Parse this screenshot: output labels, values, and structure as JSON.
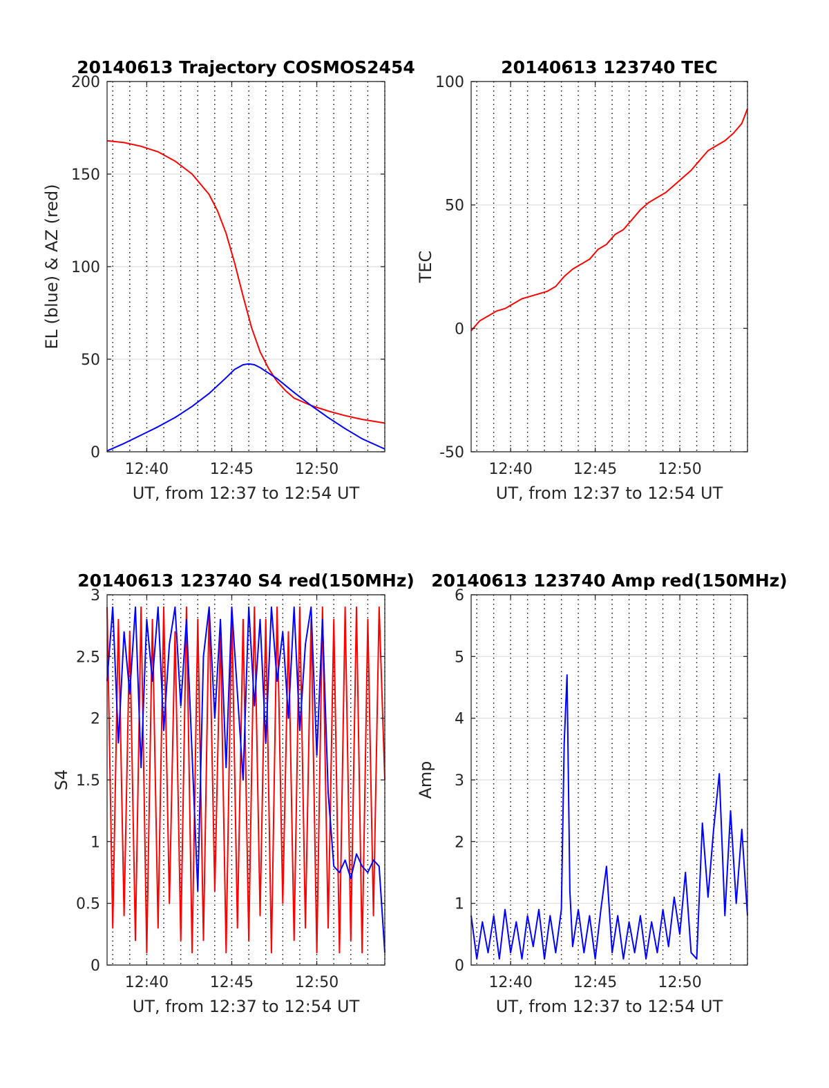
{
  "figure": {
    "background": "#ffffff",
    "colors": {
      "red": "#ff0000",
      "blue": "#0000ff",
      "axis": "#262626",
      "grid": "#dcdcdc",
      "dotted": "#000000"
    }
  },
  "chart_data": [
    {
      "id": "trajectory",
      "type": "line",
      "title": "20140613 Trajectory COSMOS2454",
      "xlabel": "UT, from 12:37 to 12:54 UT",
      "ylabel": "EL (blue) & AZ (red)",
      "xlim": [
        "12:37:40",
        "12:54:00"
      ],
      "ylim": [
        0,
        200
      ],
      "yticks": [
        0,
        50,
        100,
        150,
        200
      ],
      "xticks": [
        "12:40",
        "12:45",
        "12:50"
      ],
      "grid": "horizontal solid at y ticks; vertical dotted every minute",
      "series": [
        {
          "color": "#ff0000",
          "x": [
            "12:37:40",
            "12:38:40",
            "12:39:40",
            "12:40:40",
            "12:41:40",
            "12:42:40",
            "12:43:40",
            "12:44:10",
            "12:44:40",
            "12:45:10",
            "12:45:40",
            "12:46:10",
            "12:46:40",
            "12:47:10",
            "12:47:40",
            "12:48:10",
            "12:48:40",
            "12:49:40",
            "12:50:40",
            "12:51:40",
            "12:52:40",
            "12:54:00"
          ],
          "values": [
            168,
            167,
            165,
            162,
            157,
            150,
            139,
            130,
            118,
            102,
            84,
            67,
            54,
            45,
            38,
            33,
            29,
            25,
            22,
            19.5,
            17.5,
            15.5
          ]
        },
        {
          "color": "#0000ff",
          "x": [
            "12:37:40",
            "12:38:40",
            "12:39:40",
            "12:40:40",
            "12:41:40",
            "12:42:40",
            "12:43:40",
            "12:44:40",
            "12:45:10",
            "12:45:40",
            "12:46:00",
            "12:46:20",
            "12:46:40",
            "12:47:40",
            "12:48:40",
            "12:49:40",
            "12:50:40",
            "12:51:40",
            "12:52:40",
            "12:54:00"
          ],
          "values": [
            0.5,
            4.5,
            9,
            13.5,
            18.5,
            24.5,
            31.5,
            40,
            44.5,
            47,
            47.5,
            47,
            45.5,
            39.5,
            32,
            25,
            18.5,
            12.5,
            7,
            1.5
          ]
        }
      ]
    },
    {
      "id": "tec",
      "type": "line",
      "title": "20140613 123740 TEC",
      "xlabel": "UT, from 12:37 to 12:54 UT",
      "ylabel": "TEC",
      "xlim": [
        "12:37:40",
        "12:54:00"
      ],
      "ylim": [
        -50,
        100
      ],
      "yticks": [
        -50,
        0,
        50,
        100
      ],
      "xticks": [
        "12:40",
        "12:45",
        "12:50"
      ],
      "grid": "horizontal solid at y ticks; vertical dotted every minute",
      "series": [
        {
          "color": "#ff0000",
          "x": [
            "12:37:40",
            "12:38:10",
            "12:38:40",
            "12:39:10",
            "12:39:40",
            "12:40:10",
            "12:40:40",
            "12:41:10",
            "12:41:40",
            "12:42:10",
            "12:42:40",
            "12:43:10",
            "12:43:40",
            "12:44:10",
            "12:44:40",
            "12:45:10",
            "12:45:40",
            "12:46:10",
            "12:46:40",
            "12:47:10",
            "12:47:40",
            "12:48:10",
            "12:48:40",
            "12:49:10",
            "12:49:40",
            "12:50:10",
            "12:50:40",
            "12:51:10",
            "12:51:40",
            "12:52:10",
            "12:52:40",
            "12:53:10",
            "12:53:40",
            "12:54:00"
          ],
          "values": [
            -1,
            3,
            5,
            7,
            8,
            10,
            12,
            13,
            14,
            15,
            17,
            21,
            24,
            26,
            28,
            32,
            34,
            38,
            40,
            44,
            48,
            51,
            53,
            55,
            58,
            61,
            64,
            68,
            72,
            74,
            76,
            79,
            83,
            89
          ]
        }
      ]
    },
    {
      "id": "s4",
      "type": "line",
      "title": "20140613 123740 S4 red(150MHz)",
      "xlabel": "UT, from 12:37 to 12:54 UT",
      "ylabel": "S4",
      "xlim": [
        "12:37:40",
        "12:54:00"
      ],
      "ylim": [
        0,
        3
      ],
      "yticks": [
        0,
        0.5,
        1,
        1.5,
        2,
        2.5,
        3
      ],
      "ytick_labels": [
        "0",
        "0.5",
        "1",
        "1.5",
        "2",
        "2.5",
        "3"
      ],
      "xticks": [
        "12:40",
        "12:45",
        "12:50"
      ],
      "grid": "horizontal solid at y ticks; vertical dotted every minute",
      "series": [
        {
          "color": "#ff0000",
          "x": [
            "12:37:40",
            "12:38:00",
            "12:38:20",
            "12:38:40",
            "12:39:00",
            "12:39:20",
            "12:39:40",
            "12:40:00",
            "12:40:20",
            "12:40:40",
            "12:41:00",
            "12:41:20",
            "12:41:40",
            "12:42:00",
            "12:42:20",
            "12:42:40",
            "12:43:00",
            "12:43:20",
            "12:43:40",
            "12:44:00",
            "12:44:20",
            "12:44:40",
            "12:45:00",
            "12:45:20",
            "12:45:40",
            "12:46:00",
            "12:46:20",
            "12:46:40",
            "12:47:00",
            "12:47:20",
            "12:47:40",
            "12:48:00",
            "12:48:20",
            "12:48:40",
            "12:49:00",
            "12:49:20",
            "12:49:40",
            "12:50:00",
            "12:50:20",
            "12:50:40",
            "12:51:00",
            "12:51:20",
            "12:51:40",
            "12:52:00",
            "12:52:20",
            "12:52:40",
            "12:53:00",
            "12:53:20",
            "12:53:40",
            "12:54:00"
          ],
          "values": [
            2.9,
            0.3,
            2.8,
            0.4,
            2.7,
            0.2,
            2.9,
            0.1,
            2.8,
            0.3,
            2.9,
            0.5,
            2.7,
            0.2,
            2.9,
            0.1,
            2.8,
            0.2,
            2.9,
            0.6,
            2.7,
            0.1,
            2.9,
            0.3,
            2.8,
            0.2,
            2.9,
            0.4,
            2.8,
            0.1,
            2.9,
            0.5,
            2.7,
            0.2,
            2.9,
            0.3,
            2.8,
            0.1,
            2.9,
            0.3,
            2.8,
            0.1,
            2.9,
            0.2,
            2.9,
            0.1,
            2.8,
            0.4,
            2.9,
            1.5
          ]
        },
        {
          "color": "#0000ff",
          "x": [
            "12:37:40",
            "12:38:00",
            "12:38:20",
            "12:38:40",
            "12:39:00",
            "12:39:20",
            "12:39:40",
            "12:40:00",
            "12:40:20",
            "12:40:40",
            "12:41:00",
            "12:41:20",
            "12:41:40",
            "12:42:00",
            "12:42:20",
            "12:42:40",
            "12:43:00",
            "12:43:20",
            "12:43:40",
            "12:44:00",
            "12:44:20",
            "12:44:40",
            "12:45:00",
            "12:45:20",
            "12:45:40",
            "12:46:00",
            "12:46:20",
            "12:46:40",
            "12:47:00",
            "12:47:20",
            "12:47:40",
            "12:48:00",
            "12:48:20",
            "12:48:40",
            "12:49:00",
            "12:49:20",
            "12:49:40",
            "12:50:00",
            "12:50:20",
            "12:50:40",
            "12:51:00",
            "12:51:20",
            "12:51:40",
            "12:52:00",
            "12:52:20",
            "12:52:40",
            "12:53:00",
            "12:53:20",
            "12:53:40",
            "12:54:00"
          ],
          "values": [
            2.3,
            2.9,
            1.8,
            2.7,
            2.2,
            2.9,
            1.6,
            2.8,
            2.3,
            2.9,
            1.9,
            2.6,
            2.9,
            2.1,
            2.8,
            1.7,
            0.6,
            2.5,
            2.9,
            2.0,
            2.8,
            1.6,
            2.9,
            2.2,
            1.5,
            2.9,
            2.1,
            2.8,
            1.8,
            2.9,
            2.3,
            2.7,
            2.0,
            2.9,
            1.9,
            2.6,
            2.9,
            1.7,
            2.8,
            1.4,
            0.8,
            0.75,
            0.85,
            0.7,
            0.9,
            0.8,
            0.75,
            0.85,
            0.8,
            0.1
          ]
        }
      ]
    },
    {
      "id": "amp",
      "type": "line",
      "title": "20140613 123740 Amp red(150MHz)",
      "xlabel": "UT, from 12:37 to 12:54 UT",
      "ylabel": "Amp",
      "xlim": [
        "12:37:40",
        "12:54:00"
      ],
      "ylim": [
        0,
        6
      ],
      "yticks": [
        0,
        1,
        2,
        3,
        4,
        5,
        6
      ],
      "xticks": [
        "12:40",
        "12:45",
        "12:50"
      ],
      "grid": "horizontal solid at y ticks; vertical dotted every minute",
      "series": [
        {
          "color": "#0000ff",
          "x": [
            "12:37:40",
            "12:38:00",
            "12:38:20",
            "12:38:40",
            "12:39:00",
            "12:39:20",
            "12:39:40",
            "12:40:00",
            "12:40:20",
            "12:40:40",
            "12:41:00",
            "12:41:20",
            "12:41:40",
            "12:42:00",
            "12:42:20",
            "12:42:40",
            "12:43:00",
            "12:43:10",
            "12:43:20",
            "12:43:30",
            "12:43:40",
            "12:44:00",
            "12:44:20",
            "12:44:40",
            "12:45:00",
            "12:45:20",
            "12:45:40",
            "12:46:00",
            "12:46:20",
            "12:46:40",
            "12:47:00",
            "12:47:20",
            "12:47:40",
            "12:48:00",
            "12:48:20",
            "12:48:40",
            "12:49:00",
            "12:49:20",
            "12:49:40",
            "12:50:00",
            "12:50:20",
            "12:50:40",
            "12:51:00",
            "12:51:20",
            "12:51:40",
            "12:52:00",
            "12:52:20",
            "12:52:40",
            "12:53:00",
            "12:53:20",
            "12:53:40",
            "12:54:00"
          ],
          "values": [
            0.8,
            0.1,
            0.7,
            0.2,
            0.8,
            0.1,
            0.9,
            0.2,
            0.7,
            0.1,
            0.8,
            0.3,
            0.9,
            0.1,
            0.8,
            0.2,
            0.9,
            3.6,
            4.7,
            1.2,
            0.3,
            0.9,
            0.2,
            0.8,
            0.1,
            0.9,
            1.6,
            0.2,
            0.8,
            0.1,
            0.7,
            0.2,
            0.8,
            0.1,
            0.7,
            0.2,
            0.9,
            0.3,
            1.1,
            0.5,
            1.5,
            0.2,
            0.1,
            2.3,
            1.1,
            2.2,
            3.1,
            0.8,
            2.5,
            1.0,
            2.2,
            0.8
          ]
        }
      ]
    }
  ]
}
